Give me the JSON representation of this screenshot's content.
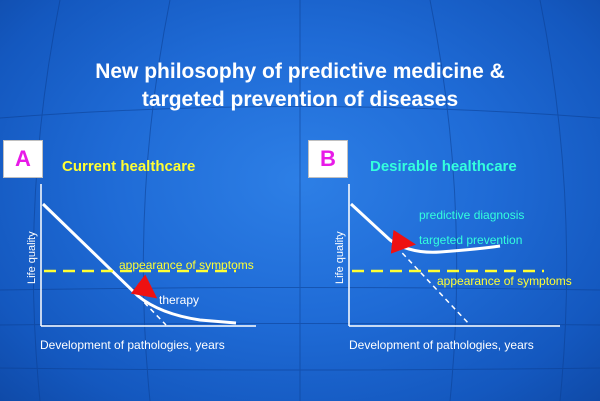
{
  "title": {
    "line1": "New philosophy of predictive medicine &",
    "line2": "targeted prevention of diseases"
  },
  "panel_a": {
    "letter": "A",
    "heading": "Current healthcare",
    "threshold_label": "appearance of symptoms",
    "intervention_label": "therapy",
    "y_axis": "Life quality",
    "x_axis": "Development of pathologies, years"
  },
  "panel_b": {
    "letter": "B",
    "heading": "Desirable healthcare",
    "label1": "predictive diagnosis",
    "label2": "targeted prevention",
    "threshold_label": "appearance of symptoms",
    "y_axis": "Life quality",
    "x_axis": "Development of pathologies, years"
  },
  "colors": {
    "letter": "#e81ae8",
    "heading_a": "#ffff33",
    "heading_b": "#33ffdd",
    "threshold": "#ffff33",
    "arrow": "#ee1111",
    "annot_b": "#33ffdd"
  }
}
